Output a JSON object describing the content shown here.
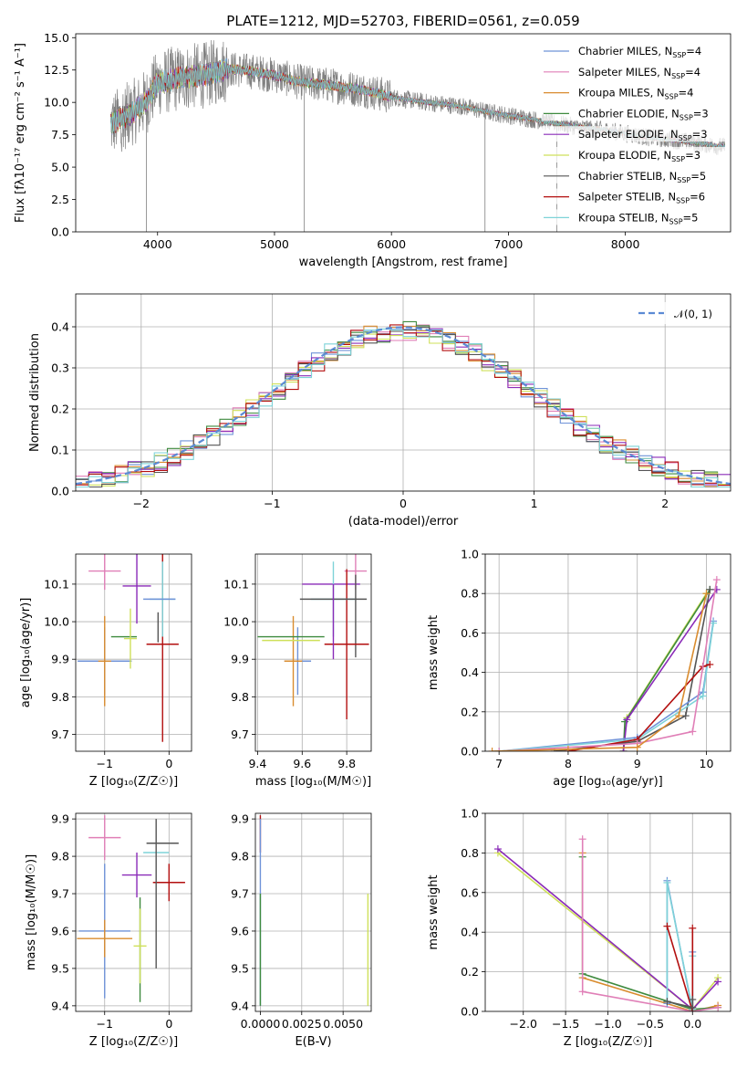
{
  "colors": {
    "chab_miles": "#6f93d8",
    "salp_miles": "#e07fb7",
    "krou_miles": "#d98c2f",
    "chab_elodie": "#3e8a3e",
    "salp_elodie": "#8a2bb8",
    "krou_elodie": "#cfe05a",
    "chab_stelib": "#555555",
    "salp_stelib": "#b30f0f",
    "krou_stelib": "#7ed3d8",
    "data": "#808080",
    "model_n01": "#5b8ad4"
  },
  "chart_data": [
    {
      "id": "spectrum",
      "type": "line",
      "title": "PLATE=1212, MJD=52703, FIBERID=0561, z=0.059",
      "xlabel": "wavelength [Angstrom, rest frame]",
      "ylabel": "Flux [fλ10⁻¹⁷ erg cm⁻² s⁻¹ A⁻¹]",
      "xlim": [
        3300,
        8900
      ],
      "ylim": [
        0,
        15.3
      ],
      "xticks": [
        4000,
        5000,
        6000,
        7000,
        8000
      ],
      "yticks": [
        0.0,
        2.5,
        5.0,
        7.5,
        10.0,
        12.5,
        15.0
      ],
      "legend_position": "top-right",
      "series_names": [
        "Chabrier MILES, N_SSP=4",
        "Salpeter MILES, N_SSP=4",
        "Kroupa MILES, N_SSP=4",
        "Chabrier ELODIE, N_SSP=3",
        "Salpeter ELODIE, N_SSP=3",
        "Kroupa ELODIE, N_SSP=3",
        "Chabrier STELIB, N_SSP=5",
        "Salpeter STELIB, N_SSP=6",
        "Kroupa STELIB, N_SSP=5"
      ],
      "continuum": [
        [
          3600,
          8.3
        ],
        [
          3700,
          8.8
        ],
        [
          3800,
          9.3
        ],
        [
          3900,
          10.0
        ],
        [
          4000,
          11.5
        ],
        [
          4200,
          11.9
        ],
        [
          4400,
          12.1
        ],
        [
          4600,
          12.6
        ],
        [
          4800,
          12.4
        ],
        [
          5000,
          12.1
        ],
        [
          5200,
          11.6
        ],
        [
          5500,
          11.3
        ],
        [
          5800,
          10.9
        ],
        [
          6000,
          10.4
        ],
        [
          6300,
          10.0
        ],
        [
          6600,
          9.7
        ],
        [
          6800,
          9.3
        ],
        [
          7000,
          9.0
        ],
        [
          7200,
          8.7
        ],
        [
          7400,
          8.4
        ],
        [
          7600,
          8.1
        ],
        [
          7800,
          7.9
        ],
        [
          8000,
          7.6
        ],
        [
          8200,
          7.3
        ],
        [
          8400,
          7.1
        ],
        [
          8600,
          6.9
        ],
        [
          8800,
          6.6
        ]
      ],
      "dropouts": [
        3905,
        5255,
        6800,
        7415
      ]
    },
    {
      "id": "residuals",
      "type": "histogram",
      "xlabel": "(data-model)/error",
      "ylabel": "Normed distribution",
      "xlim": [
        -2.5,
        2.5
      ],
      "ylim": [
        0,
        0.48
      ],
      "xticks": [
        -2,
        -1,
        0,
        1,
        2
      ],
      "yticks": [
        0.0,
        0.1,
        0.2,
        0.3,
        0.4
      ],
      "legend": "𝒩(0, 1)",
      "legend_position": "top-right",
      "grid": true
    },
    {
      "id": "age_vs_Z",
      "type": "errorbar",
      "xlabel": "Z [log₁₀(Z/Z☉)]",
      "ylabel": "age  [log₁₀(age/yr)]",
      "xlim": [
        -1.45,
        0.35
      ],
      "ylim": [
        9.655,
        10.18
      ],
      "xticks": [
        -1,
        0
      ],
      "yticks": [
        9.7,
        9.8,
        9.9,
        10.0,
        10.1
      ],
      "points": [
        {
          "k": "salp_miles",
          "x": -1.0,
          "xe": 0.25,
          "y": 10.135,
          "ye": 0.05
        },
        {
          "k": "chab_miles",
          "x": -1.0,
          "xe": 0.42,
          "y": 9.895,
          "ye": 0.09
        },
        {
          "k": "krou_miles",
          "x": -1.0,
          "xe": 0.1,
          "y": 9.895,
          "ye": 0.12
        },
        {
          "k": "chab_elodie",
          "x": -0.7,
          "xe": 0.2,
          "y": 9.96,
          "ye": 0.0
        },
        {
          "k": "salp_elodie",
          "x": -0.5,
          "xe": 0.22,
          "y": 10.095,
          "ye": 0.1
        },
        {
          "k": "krou_elodie",
          "x": -0.6,
          "xe": 0.1,
          "y": 9.955,
          "ye": 0.08
        },
        {
          "k": "chab_stelib",
          "x": -0.17,
          "xe": 0.0,
          "y": 9.985,
          "ye": 0.04
        },
        {
          "k": "salp_stelib",
          "x": -0.1,
          "xe": 0.25,
          "y": 9.94,
          "ye": 0.26
        },
        {
          "k": "krou_stelib",
          "x": -0.1,
          "xe": 0.2,
          "y": 10.06,
          "ye": 0.1
        },
        {
          "k": "chab_miles",
          "x": -0.15,
          "xe": 0.25,
          "y": 10.06,
          "ye": 0.0
        }
      ]
    },
    {
      "id": "age_vs_mass",
      "type": "errorbar",
      "xlabel": "mass [log₁₀(M/M☉)]",
      "ylabel": "",
      "xlim": [
        9.39,
        9.91
      ],
      "ylim": [
        9.655,
        10.18
      ],
      "xticks": [
        9.4,
        9.6,
        9.8
      ],
      "yticks": [
        9.7,
        9.8,
        9.9,
        10.0,
        10.1
      ],
      "points": [
        {
          "k": "salp_miles",
          "x": 9.84,
          "xe": 0.05,
          "y": 10.135,
          "ye": 0.05
        },
        {
          "k": "chab_miles",
          "x": 9.58,
          "xe": 0.06,
          "y": 9.895,
          "ye": 0.09
        },
        {
          "k": "krou_miles",
          "x": 9.56,
          "xe": 0.04,
          "y": 9.895,
          "ye": 0.12
        },
        {
          "k": "chab_elodie",
          "x": 9.55,
          "xe": 0.15,
          "y": 9.96,
          "ye": 0.0
        },
        {
          "k": "salp_elodie",
          "x": 9.73,
          "xe": 0.13,
          "y": 10.1,
          "ye": 0.0
        },
        {
          "k": "krou_elodie",
          "x": 9.55,
          "xe": 0.13,
          "y": 9.95,
          "ye": 0.0
        },
        {
          "k": "chab_stelib",
          "x": 9.84,
          "xe": 0.0,
          "y": 10.015,
          "ye": 0.11
        },
        {
          "k": "salp_stelib",
          "x": 9.8,
          "xe": 0.1,
          "y": 9.94,
          "ye": 0.2
        },
        {
          "k": "krou_stelib",
          "x": 9.74,
          "xe": 0.1,
          "y": 10.06,
          "ye": 0.1
        },
        {
          "k": "chab_stelib",
          "x": 9.74,
          "xe": 0.15,
          "y": 10.06,
          "ye": 0.0
        },
        {
          "k": "salp_elodie",
          "x": 9.74,
          "xe": 0.0,
          "y": 10.0,
          "ye": 0.1
        }
      ]
    },
    {
      "id": "massweight_vs_age",
      "type": "line",
      "xlabel": "age  [log₁₀(age/yr)]",
      "ylabel": "mass weight",
      "xlim": [
        6.8,
        10.35
      ],
      "ylim": [
        0,
        1.0
      ],
      "xticks": [
        7,
        8,
        9,
        10
      ],
      "yticks": [
        0.0,
        0.2,
        0.4,
        0.6,
        0.8,
        1.0
      ],
      "series": [
        {
          "k": "krou_elodie",
          "points": [
            [
              8.8,
              0.0
            ],
            [
              8.85,
              0.17
            ],
            [
              10.0,
              0.8
            ]
          ]
        },
        {
          "k": "chab_elodie",
          "points": [
            [
              8.8,
              0.0
            ],
            [
              8.82,
              0.15
            ],
            [
              10.05,
              0.82
            ]
          ]
        },
        {
          "k": "salp_elodie",
          "points": [
            [
              8.8,
              0.0
            ],
            [
              8.85,
              0.16
            ],
            [
              10.15,
              0.82
            ]
          ]
        },
        {
          "k": "chab_stelib",
          "points": [
            [
              7.8,
              0.0
            ],
            [
              9.0,
              0.05
            ],
            [
              9.7,
              0.18
            ],
            [
              10.05,
              0.82
            ]
          ]
        },
        {
          "k": "chab_miles",
          "points": [
            [
              7.0,
              0.0
            ],
            [
              9.0,
              0.07
            ],
            [
              9.95,
              0.3
            ],
            [
              10.1,
              0.66
            ]
          ]
        },
        {
          "k": "krou_stelib",
          "points": [
            [
              7.0,
              0.0
            ],
            [
              9.0,
              0.06
            ],
            [
              9.95,
              0.28
            ],
            [
              10.1,
              0.65
            ]
          ]
        },
        {
          "k": "salp_stelib",
          "points": [
            [
              8.0,
              0.0
            ],
            [
              9.0,
              0.06
            ],
            [
              9.95,
              0.43
            ],
            [
              10.05,
              0.44
            ]
          ]
        },
        {
          "k": "salp_miles",
          "points": [
            [
              7.0,
              0.0
            ],
            [
              9.0,
              0.04
            ],
            [
              9.8,
              0.1
            ],
            [
              10.15,
              0.87
            ]
          ]
        },
        {
          "k": "krou_miles",
          "points": [
            [
              6.9,
              0.0
            ],
            [
              8.0,
              0.01
            ],
            [
              9.0,
              0.02
            ],
            [
              9.6,
              0.18
            ],
            [
              10.0,
              0.8
            ]
          ]
        }
      ]
    },
    {
      "id": "mass_vs_Z",
      "type": "errorbar",
      "xlabel": "Z [log₁₀(Z/Z☉)]",
      "ylabel": "mass [log₁₀(M/M☉)]",
      "xlim": [
        -1.45,
        0.35
      ],
      "ylim": [
        9.385,
        9.915
      ],
      "xticks": [
        -1,
        0
      ],
      "yticks": [
        9.4,
        9.5,
        9.6,
        9.7,
        9.8,
        9.9
      ],
      "points": [
        {
          "k": "salp_miles",
          "x": -1.0,
          "xe": 0.25,
          "y": 9.85,
          "ye": 0.06
        },
        {
          "k": "chab_miles",
          "x": -1.0,
          "xe": 0.4,
          "y": 9.6,
          "ye": 0.18
        },
        {
          "k": "krou_miles",
          "x": -1.0,
          "xe": 0.43,
          "y": 9.58,
          "ye": 0.05
        },
        {
          "k": "chab_elodie",
          "x": -0.45,
          "xe": 0.0,
          "y": 9.55,
          "ye": 0.14
        },
        {
          "k": "salp_elodie",
          "x": -0.5,
          "xe": 0.23,
          "y": 9.75,
          "ye": 0.06
        },
        {
          "k": "krou_elodie",
          "x": -0.45,
          "xe": 0.1,
          "y": 9.56,
          "ye": 0.1
        },
        {
          "k": "chab_stelib",
          "x": -0.1,
          "xe": 0.25,
          "y": 9.835,
          "ye": 0.0
        },
        {
          "k": "salp_stelib",
          "x": 0.0,
          "xe": 0.25,
          "y": 9.73,
          "ye": 0.05
        },
        {
          "k": "krou_stelib",
          "x": -0.2,
          "xe": 0.2,
          "y": 9.81,
          "ye": 0.0
        },
        {
          "k": "chab_stelib",
          "x": -0.2,
          "xe": 0.0,
          "y": 9.7,
          "ye": 0.2
        }
      ]
    },
    {
      "id": "mass_vs_ebv",
      "type": "errorbar",
      "xlabel": "E(B-V)",
      "ylabel": "",
      "xlim": [
        -0.0003,
        0.0067
      ],
      "ylim": [
        9.385,
        9.915
      ],
      "xticks": [
        0.0,
        0.0025,
        0.005
      ],
      "xticklabels": [
        "0.0000",
        "0.0025",
        "0.0050"
      ],
      "yticks": [
        9.4,
        9.5,
        9.6,
        9.7,
        9.8,
        9.9
      ],
      "points": [
        {
          "k": "salp_stelib",
          "x": 0.0,
          "xe": 0.0,
          "y": 9.86,
          "ye": 0.05
        },
        {
          "k": "chab_miles",
          "x": 0.0,
          "xe": 0.0,
          "y": 9.65,
          "ye": 0.25
        },
        {
          "k": "chab_elodie",
          "x": 0.0,
          "xe": 0.0,
          "y": 9.55,
          "ye": 0.15
        },
        {
          "k": "krou_elodie",
          "x": 0.0065,
          "xe": 0.0,
          "y": 9.55,
          "ye": 0.15
        }
      ]
    },
    {
      "id": "massweight_vs_Z",
      "type": "line",
      "xlabel": "Z [log₁₀(Z/Z☉)]",
      "ylabel": "mass weight",
      "xlim": [
        -2.45,
        0.45
      ],
      "ylim": [
        0,
        1.0
      ],
      "xticks": [
        -2.0,
        -1.5,
        -1.0,
        -0.5,
        0.0
      ],
      "xticklabels": [
        "−2.0",
        "−1.5",
        "−1.0",
        "−0.5",
        "0.0"
      ],
      "yticks": [
        0.0,
        0.2,
        0.4,
        0.6,
        0.8,
        1.0
      ],
      "series": [
        {
          "k": "krou_elodie",
          "points": [
            [
              -2.3,
              0.8
            ],
            [
              0.0,
              0.01
            ],
            [
              0.3,
              0.17
            ]
          ]
        },
        {
          "k": "salp_elodie",
          "points": [
            [
              -2.3,
              0.82
            ],
            [
              0.0,
              0.01
            ],
            [
              0.3,
              0.15
            ]
          ]
        },
        {
          "k": "krou_miles",
          "points": [
            [
              -1.3,
              0.8
            ],
            [
              -1.3,
              0.17
            ],
            [
              0.0,
              0.0
            ],
            [
              0.3,
              0.03
            ]
          ]
        },
        {
          "k": "chab_elodie",
          "points": [
            [
              -1.3,
              0.78
            ],
            [
              -1.3,
              0.19
            ],
            [
              0.0,
              0.01
            ],
            [
              0.3,
              0.02
            ]
          ]
        },
        {
          "k": "salp_miles",
          "points": [
            [
              -1.3,
              0.87
            ],
            [
              -1.3,
              0.1
            ],
            [
              0.0,
              0.0
            ],
            [
              0.3,
              0.02
            ]
          ]
        },
        {
          "k": "chab_miles",
          "points": [
            [
              -0.3,
              0.04
            ],
            [
              -0.3,
              0.66
            ],
            [
              0.0,
              0.0
            ],
            [
              0.0,
              0.3
            ]
          ]
        },
        {
          "k": "krou_stelib",
          "points": [
            [
              -0.3,
              0.05
            ],
            [
              -0.3,
              0.65
            ],
            [
              0.0,
              0.01
            ],
            [
              0.0,
              0.28
            ]
          ]
        },
        {
          "k": "salp_stelib",
          "points": [
            [
              -0.3,
              0.43
            ],
            [
              0.0,
              0.0
            ],
            [
              0.0,
              0.42
            ]
          ]
        },
        {
          "k": "chab_stelib",
          "points": [
            [
              -0.3,
              0.05
            ],
            [
              0.0,
              0.02
            ],
            [
              0.0,
              0.06
            ]
          ]
        }
      ]
    }
  ]
}
